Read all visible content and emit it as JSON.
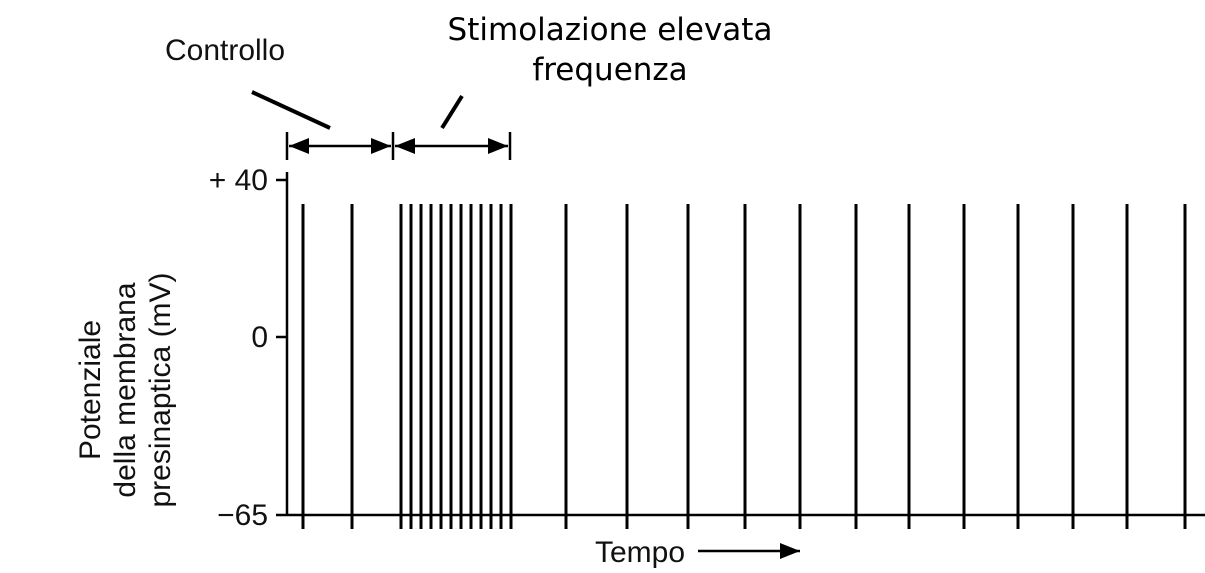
{
  "header": {
    "title_lines": [
      "Stimolazione elevata",
      "frequenza"
    ]
  },
  "labels": {
    "control": "Controllo",
    "x_axis": "Tempo",
    "y_axis_lines": [
      "Potenziale",
      "della membrana",
      "presinaptica (mV)"
    ]
  },
  "y_axis": {
    "ticks": [
      "+ 40",
      "0",
      "−65"
    ]
  }
}
